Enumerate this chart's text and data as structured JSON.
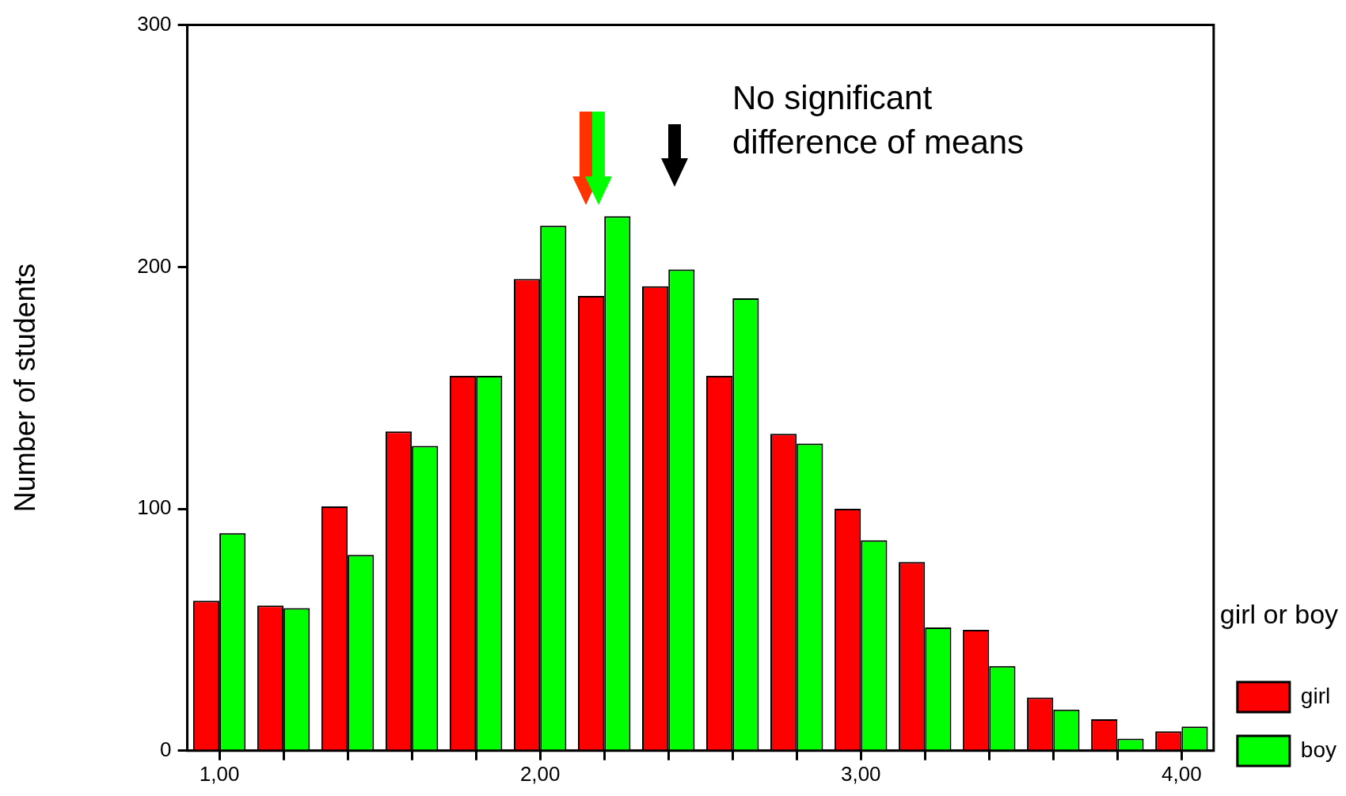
{
  "chart_data": {
    "type": "bar",
    "ylabel": "Number of students",
    "legend_title": "girl or boy",
    "legend": "right",
    "categories": [
      "1,00",
      null,
      null,
      null,
      null,
      "2,00",
      null,
      null,
      null,
      null,
      "3,00",
      null,
      null,
      null,
      null,
      "4,00"
    ],
    "series": [
      {
        "name": "girl",
        "color": "#ff0000",
        "values": [
          62,
          60,
          101,
          132,
          155,
          195,
          188,
          192,
          155,
          131,
          100,
          78,
          50,
          22,
          13,
          8
        ]
      },
      {
        "name": "boy",
        "color": "#00ff00",
        "values": [
          90,
          59,
          81,
          126,
          155,
          217,
          221,
          199,
          187,
          127,
          87,
          51,
          35,
          17,
          5,
          10
        ]
      }
    ],
    "ylim": [
      0,
      300
    ],
    "yticks": [
      0,
      100,
      200,
      300
    ],
    "grid": false,
    "annotations": [
      "No significant difference of means"
    ]
  }
}
